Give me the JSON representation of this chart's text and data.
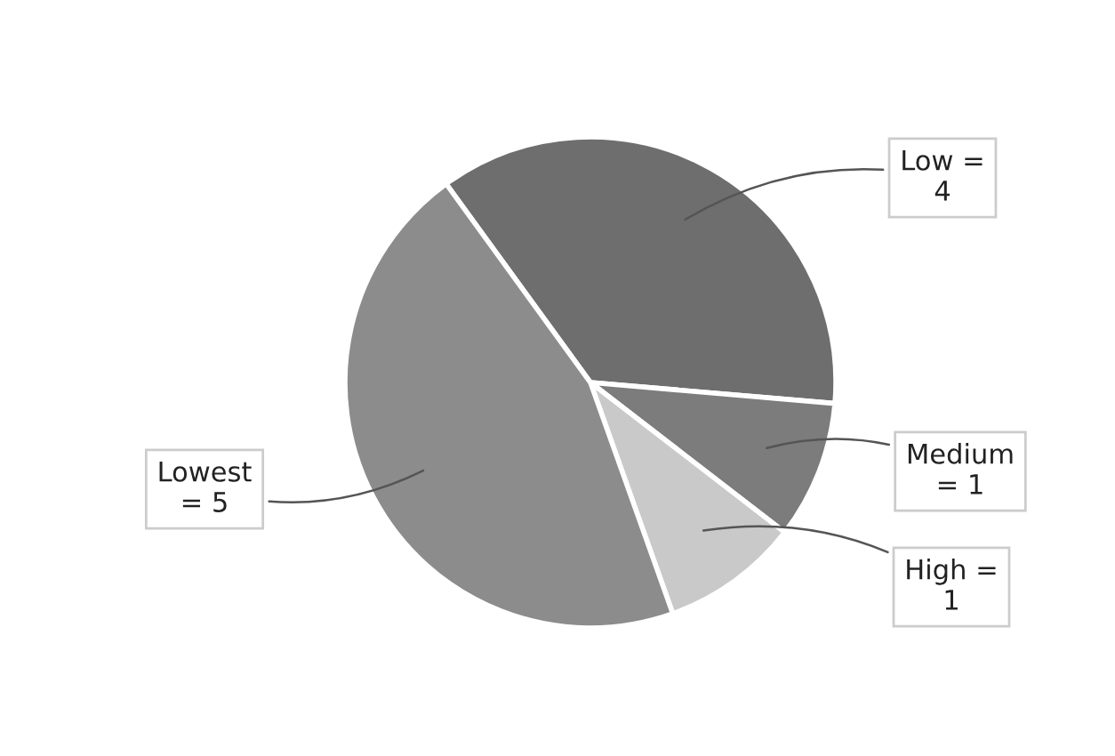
{
  "chart_data": {
    "type": "pie",
    "categories": [
      "Low =",
      "Medium",
      "High =",
      "Lowest"
    ],
    "values": [
      4,
      1,
      1,
      5
    ],
    "colors": [
      "#6e6e6e",
      "#7c7c7c",
      "#c9c9c9",
      "#8c8c8c"
    ],
    "value_labels": [
      "4",
      "= 1",
      "1",
      "= 5"
    ]
  }
}
